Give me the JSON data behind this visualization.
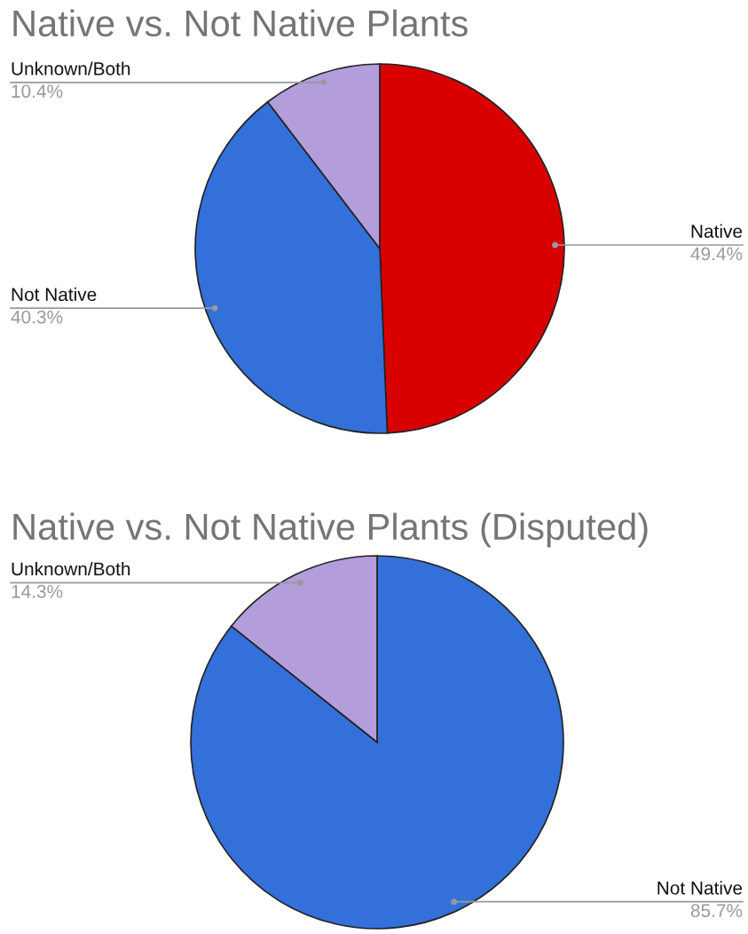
{
  "chart_data": [
    {
      "type": "pie",
      "title": "Native vs. Not Native Plants",
      "categories": [
        "Native",
        "Not Native",
        "Unknown/Both"
      ],
      "values": [
        49.4,
        40.3,
        10.4
      ],
      "colors": [
        "#d90000",
        "#3370d9",
        "#b39ddb"
      ],
      "value_labels": [
        "49.4%",
        "40.3%",
        "10.4%"
      ]
    },
    {
      "type": "pie",
      "title": "Native vs. Not Native Plants (Disputed)",
      "categories": [
        "Not Native",
        "Unknown/Both"
      ],
      "values": [
        85.7,
        14.3
      ],
      "colors": [
        "#3370d9",
        "#b39ddb"
      ],
      "value_labels": [
        "85.7%",
        "14.3%"
      ]
    }
  ]
}
